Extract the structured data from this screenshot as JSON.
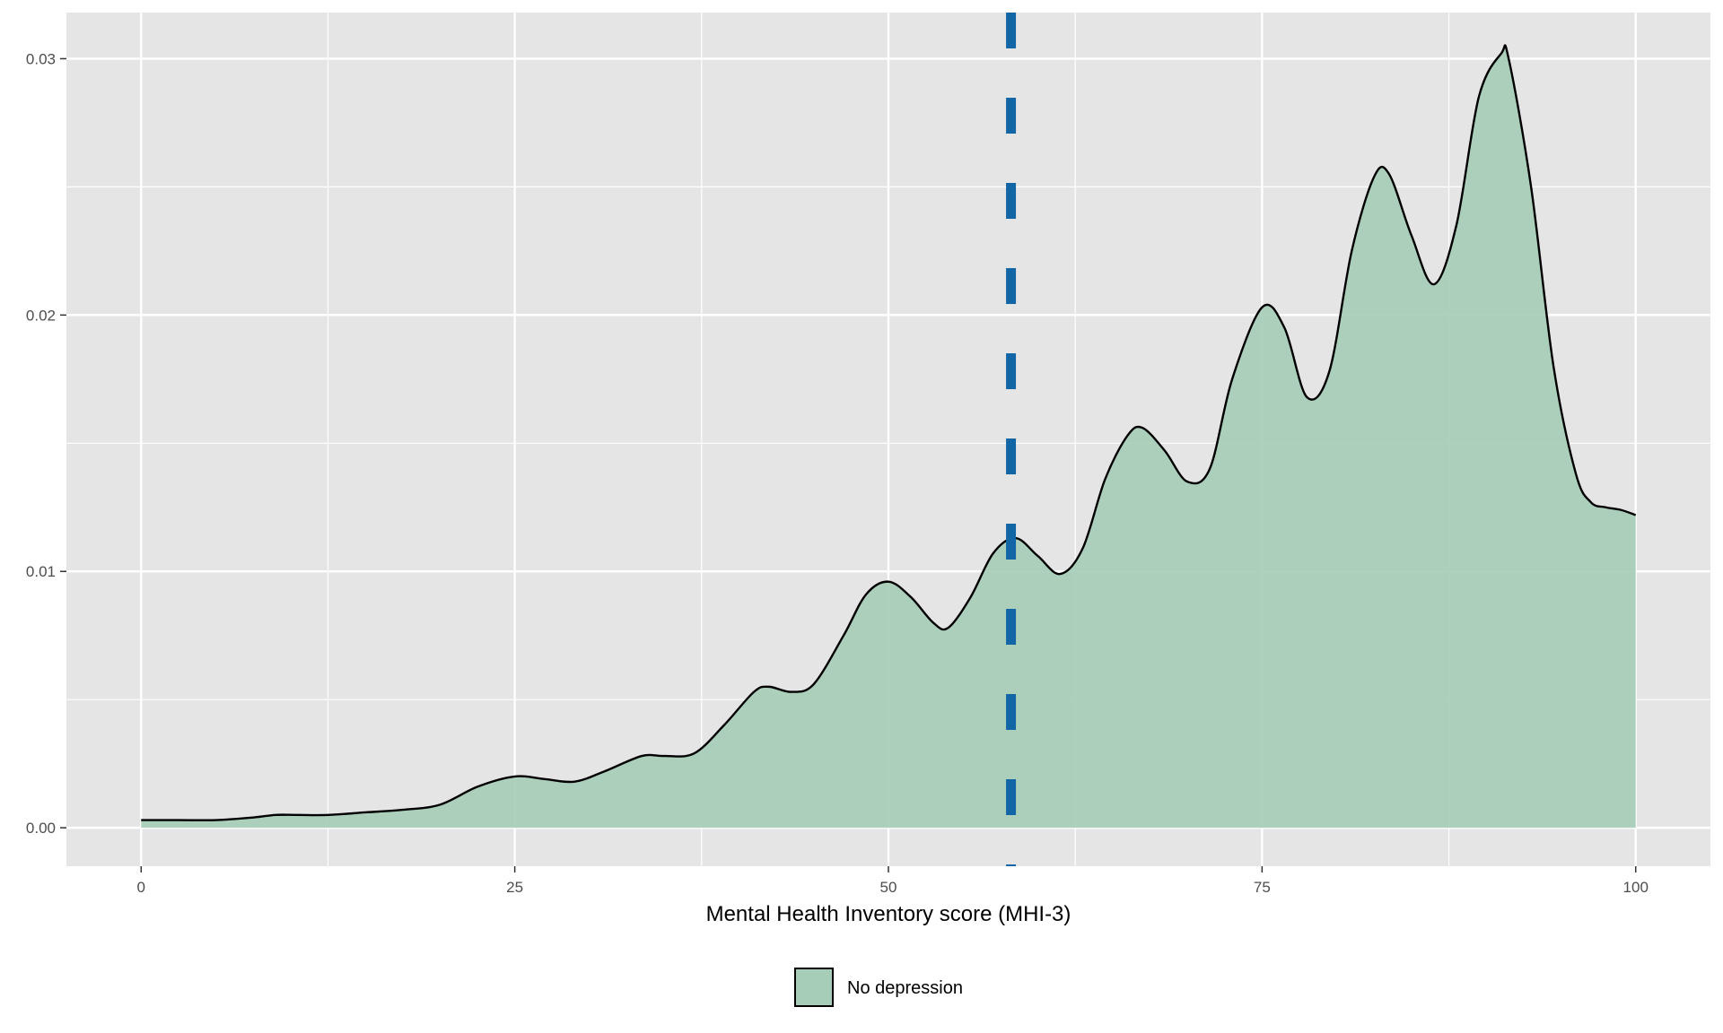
{
  "chart_data": {
    "type": "area",
    "title": "",
    "xlabel": "Mental Health Inventory score (MHI-3)",
    "ylabel": "",
    "xlim": [
      -5,
      105
    ],
    "ylim": [
      -0.0015,
      0.0318
    ],
    "x_ticks": [
      0,
      25,
      50,
      75,
      100
    ],
    "x_tick_labels": [
      "0",
      "25",
      "50",
      "75",
      "100"
    ],
    "y_ticks": [
      0.0,
      0.01,
      0.02,
      0.03
    ],
    "y_tick_labels": [
      "0.00",
      "0.01",
      "0.02",
      "0.03"
    ],
    "grid": true,
    "legend_position": "bottom",
    "series": [
      {
        "name": "No depression",
        "fill": "#a6cdb7",
        "stroke": "#000000",
        "x": [
          0,
          2.5,
          5,
          7.5,
          9,
          10.5,
          12.5,
          15,
          17.5,
          20,
          22.5,
          25,
          27,
          29,
          31,
          33.5,
          35,
          37,
          39,
          41,
          42,
          43.5,
          45,
          47,
          48.5,
          50,
          51.5,
          53,
          54,
          55.5,
          57,
          58.5,
          60,
          61.5,
          63,
          64.5,
          66,
          67,
          68.5,
          70,
          71.5,
          73,
          75,
          76.5,
          78,
          79.5,
          81,
          82.5,
          83.5,
          85,
          86.5,
          88,
          89.5,
          91,
          91.5,
          93,
          94.5,
          96,
          97,
          98,
          99,
          100
        ],
        "y": [
          0.0003,
          0.0003,
          0.0003,
          0.0004,
          0.0005,
          0.0005,
          0.0005,
          0.0006,
          0.0007,
          0.0009,
          0.0016,
          0.002,
          0.0019,
          0.0018,
          0.0022,
          0.0028,
          0.0028,
          0.0029,
          0.004,
          0.0053,
          0.0055,
          0.0053,
          0.0056,
          0.0075,
          0.0091,
          0.0096,
          0.009,
          0.008,
          0.0078,
          0.009,
          0.0107,
          0.0113,
          0.0106,
          0.0099,
          0.0109,
          0.0136,
          0.0153,
          0.0156,
          0.0147,
          0.0135,
          0.014,
          0.0175,
          0.0203,
          0.0195,
          0.0168,
          0.0178,
          0.0225,
          0.0254,
          0.0255,
          0.0231,
          0.0212,
          0.0235,
          0.0285,
          0.0302,
          0.03,
          0.025,
          0.018,
          0.0138,
          0.0127,
          0.0125,
          0.0124,
          0.0122
        ]
      }
    ],
    "reference_lines": [
      {
        "axis": "x",
        "value": 58.2,
        "color": "#1266a6",
        "style": "dashed"
      }
    ]
  }
}
